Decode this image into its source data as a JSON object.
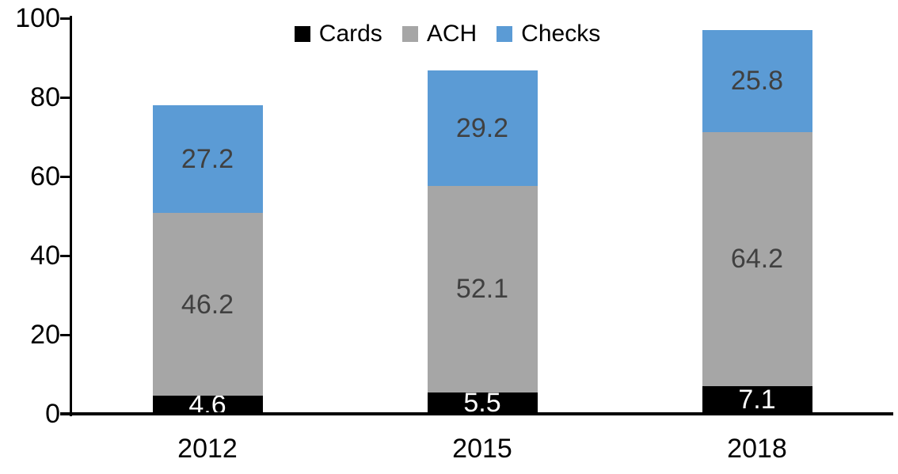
{
  "chart_data": {
    "type": "bar",
    "stacked": true,
    "title": "",
    "xlabel": "",
    "ylabel": "",
    "categories": [
      "2012",
      "2015",
      "2018"
    ],
    "series": [
      {
        "name": "Cards",
        "color": "#000000",
        "label_color": "#ffffff",
        "values": [
          4.6,
          5.5,
          7.1
        ]
      },
      {
        "name": "ACH",
        "color": "#a6a6a6",
        "label_color": "#404040",
        "values": [
          46.2,
          52.1,
          64.2
        ]
      },
      {
        "name": "Checks",
        "color": "#5b9bd5",
        "label_color": "#404040",
        "values": [
          27.2,
          29.2,
          25.8
        ]
      }
    ],
    "totals": [
      78.0,
      86.8,
      97.1
    ],
    "ylim": [
      0,
      100
    ],
    "yticks": [
      0,
      20,
      40,
      60,
      80,
      100
    ],
    "grid": false,
    "data_labels": true,
    "legend": {
      "position": "top-center",
      "entries": [
        "Cards",
        "ACH",
        "Checks"
      ]
    },
    "axis_color": "#000000",
    "background_color": "#ffffff"
  }
}
